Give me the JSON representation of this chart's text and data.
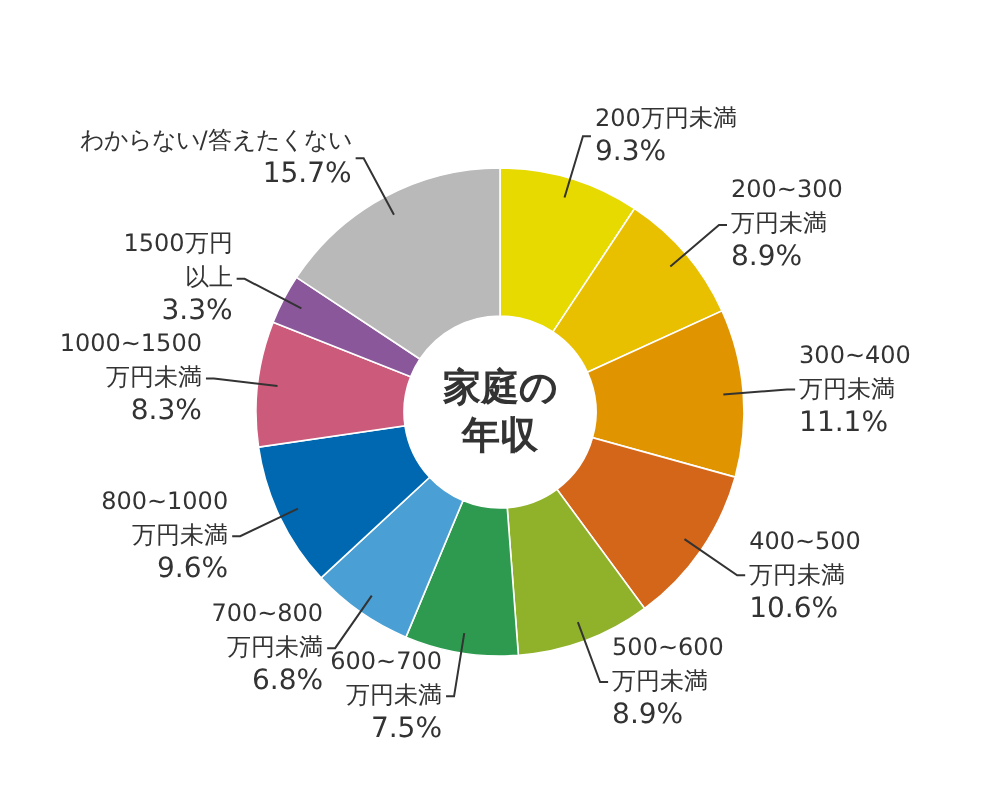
{
  "chart_data": {
    "type": "donut",
    "title": "家庭の年収",
    "categories": [
      "200万円未満",
      "200~300万円未満",
      "300~400万円未満",
      "400~500万円未満",
      "500~600万円未満",
      "600~700万円未満",
      "700~800万円未満",
      "800~1000万円未満",
      "1000~1500万円未満",
      "1500万円以上",
      "わからない/答えたくない"
    ],
    "values": [
      9.3,
      8.9,
      11.1,
      10.6,
      8.9,
      7.5,
      6.8,
      9.6,
      8.3,
      3.3,
      15.7
    ],
    "value_labels": [
      "9.3%",
      "8.9%",
      "11.1%",
      "10.6%",
      "8.9%",
      "7.5%",
      "6.8%",
      "9.6%",
      "8.3%",
      "3.3%",
      "15.7%"
    ],
    "colors": [
      "#e6da00",
      "#e8c000",
      "#e09400",
      "#d4661a",
      "#8fb22a",
      "#2e9a50",
      "#4a9fd4",
      "#0068b0",
      "#cc5a7a",
      "#8a589a",
      "#b9b9b9"
    ]
  }
}
